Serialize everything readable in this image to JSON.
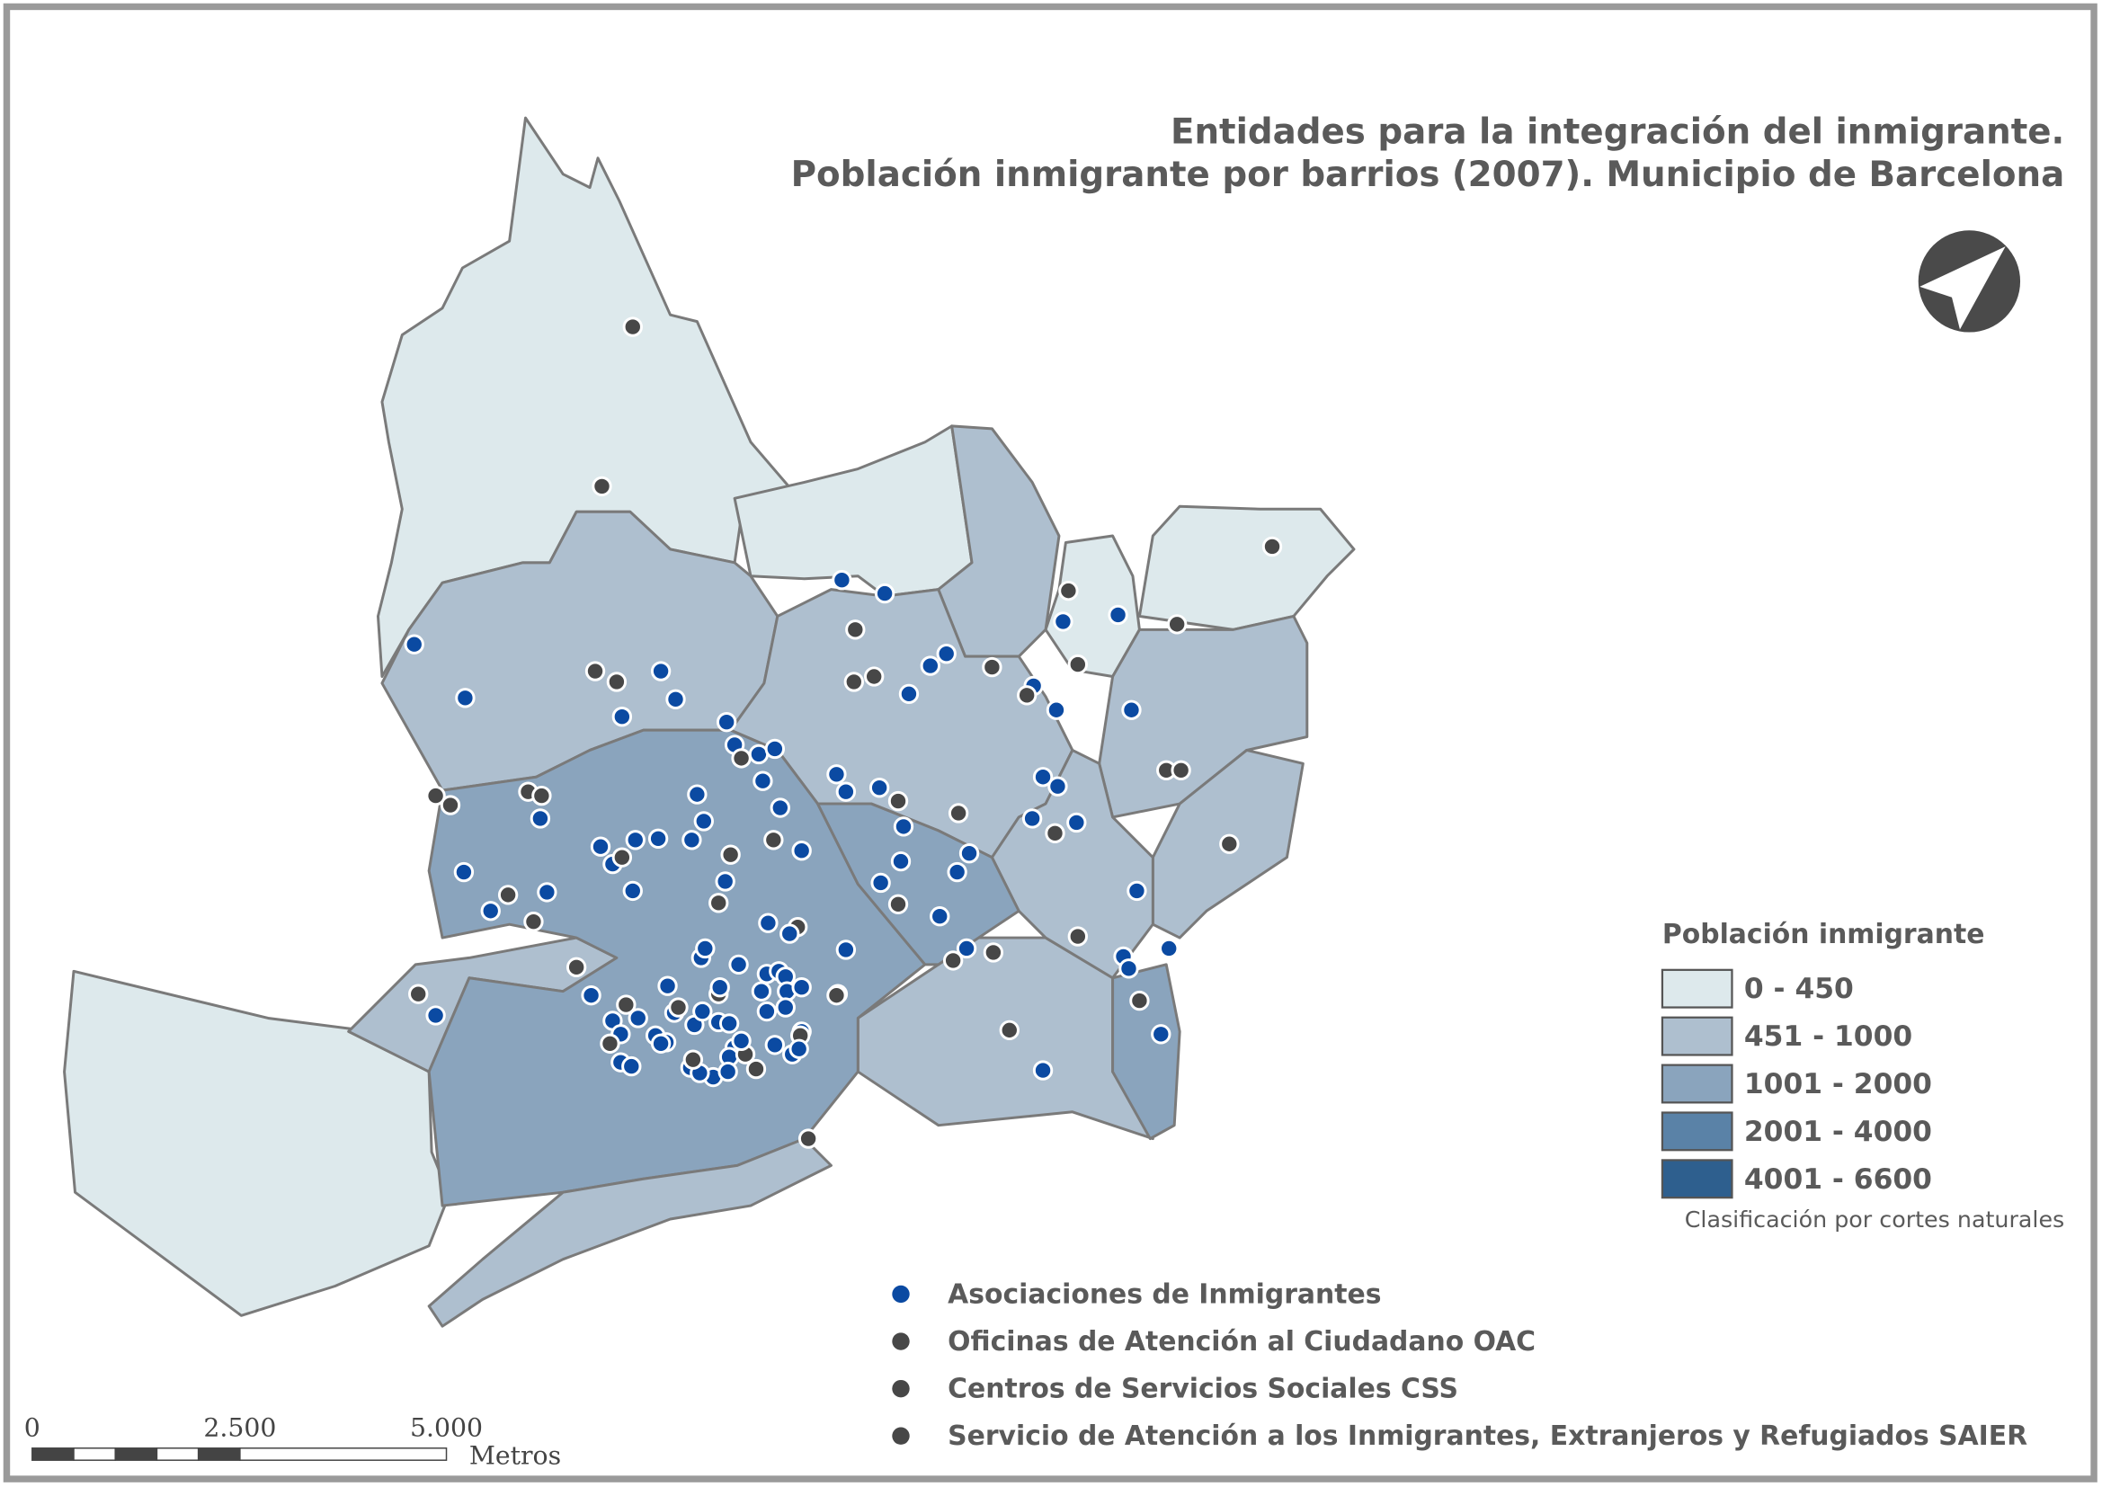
{
  "title": [
    "Entidades para la integración del inmigrante.",
    "Población inmigrante por barrios (2007). Municipio de Barcelona"
  ],
  "legend": {
    "title": "Población inmigrante",
    "classes": [
      {
        "label": "0 - 450",
        "color": "#dde9ec"
      },
      {
        "label": "451 - 1000",
        "color": "#aebfcf"
      },
      {
        "label": "1001 - 2000",
        "color": "#8aa4bd"
      },
      {
        "label": "2001 - 4000",
        "color": "#5a82a7"
      },
      {
        "label": "4001 - 6600",
        "color": "#2e5f8e"
      }
    ],
    "note": "Clasificación por cortes naturales"
  },
  "point_types": [
    {
      "label": "Asociaciones de Inmigrantes",
      "color": "#0b4aa2"
    },
    {
      "label": "Oficinas de Atención al Ciudadano OAC",
      "color": "#474747"
    },
    {
      "label": "Centros de Servicios Sociales CSS",
      "color": "#474747"
    },
    {
      "label": "Servicio de Atención a los Inmigrantes, Extranjeros y Refugiados SAIER",
      "color": "#474747"
    }
  ],
  "scale_bar": {
    "labels": [
      "0",
      "2.500",
      "5.000"
    ],
    "unit": "Metros"
  }
}
